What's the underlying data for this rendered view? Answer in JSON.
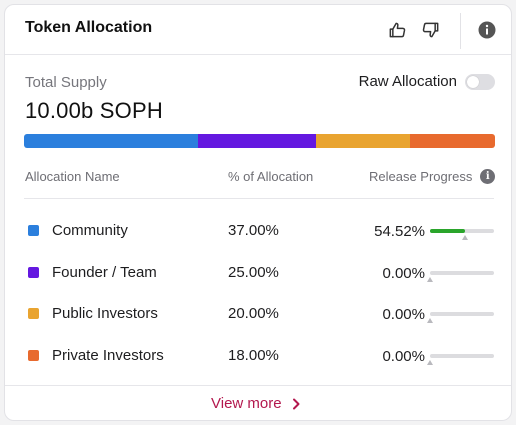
{
  "header": {
    "title": "Token Allocation"
  },
  "supply": {
    "label": "Total Supply",
    "value": "10.00b SOPH"
  },
  "raw_allocation": {
    "label": "Raw Allocation",
    "enabled": false
  },
  "table": {
    "col_name": "Allocation Name",
    "col_pct": "% of Allocation",
    "col_release": "Release Progress",
    "rows": [
      {
        "name": "Community",
        "pct": "37.00%",
        "release": "54.52%",
        "color": "#2b7fdd",
        "allocation": 37.0,
        "release_value": 54.52
      },
      {
        "name": "Founder / Team",
        "pct": "25.00%",
        "release": "0.00%",
        "color": "#6418e0",
        "allocation": 25.0,
        "release_value": 0.0
      },
      {
        "name": "Public Investors",
        "pct": "20.00%",
        "release": "0.00%",
        "color": "#e9a430",
        "allocation": 20.0,
        "release_value": 0.0
      },
      {
        "name": "Private Investors",
        "pct": "18.00%",
        "release": "0.00%",
        "color": "#e86a2e",
        "allocation": 18.0,
        "release_value": 0.0
      }
    ]
  },
  "footer": {
    "view_more": "View more"
  },
  "icons": [
    "thumbs-up-icon",
    "thumbs-down-icon",
    "info-icon",
    "chevron-right-icon"
  ]
}
